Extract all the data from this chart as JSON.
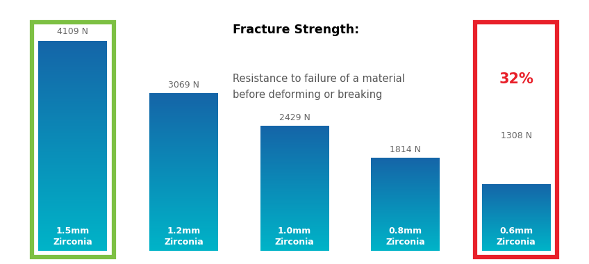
{
  "categories": [
    "1.5mm\nZirconia",
    "1.2mm\nZirconia",
    "1.0mm\nZirconia",
    "0.8mm\nZirconia",
    "0.6mm\nZirconia"
  ],
  "values": [
    4109,
    3069,
    2429,
    1814,
    1308
  ],
  "value_labels": [
    "4109 N",
    "3069 N",
    "2429 N",
    "1814 N",
    "1308 N"
  ],
  "bar_color_top": "#1565a8",
  "bar_color_bottom": "#00b4c8",
  "bar_width": 0.62,
  "title_bold": "Fracture Strength:",
  "title_sub": "Resistance to failure of a material\nbefore deforming or breaking",
  "highlight_color_first": "#7dc043",
  "highlight_color_last": "#e8202a",
  "highlight_pct_text": "32%",
  "highlight_pct_color": "#e8202a",
  "ylim_max": 4800,
  "background_color": "#ffffff",
  "label_color_outside": "#666666",
  "label_color_inside": "#ffffff"
}
